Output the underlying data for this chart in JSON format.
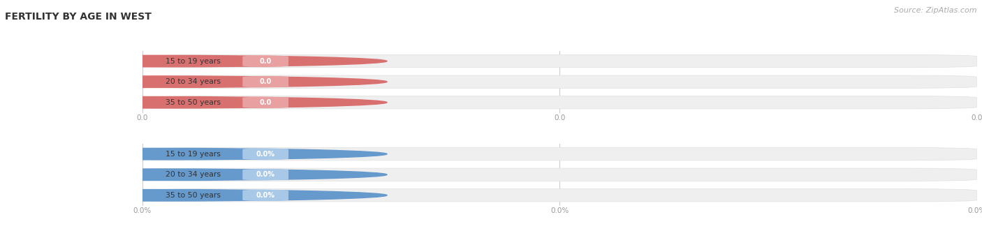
{
  "title": "FERTILITY BY AGE IN WEST",
  "source_text": "Source: ZipAtlas.com",
  "top_section": {
    "categories": [
      "15 to 19 years",
      "20 to 34 years",
      "35 to 50 years"
    ],
    "values": [
      0.0,
      0.0,
      0.0
    ],
    "bar_color": "#e8a0a0",
    "circle_color": "#d97070",
    "value_chip_color": "#e8a0a0",
    "bar_bg_color": "#efefef",
    "pill_bg_color": "#ffffff",
    "label_color": "#333333",
    "value_color": "#ffffff",
    "tick_color": "#999999",
    "tick_labels": [
      "0.0",
      "0.0",
      "0.0"
    ]
  },
  "bottom_section": {
    "categories": [
      "15 to 19 years",
      "20 to 34 years",
      "35 to 50 years"
    ],
    "values": [
      0.0,
      0.0,
      0.0
    ],
    "bar_color": "#a8c8e8",
    "circle_color": "#6699cc",
    "value_chip_color": "#a8c8e8",
    "bar_bg_color": "#efefef",
    "pill_bg_color": "#ffffff",
    "label_color": "#333333",
    "value_color": "#ffffff",
    "tick_color": "#999999",
    "tick_labels": [
      "0.0%",
      "0.0%",
      "0.0%"
    ]
  },
  "figsize": [
    14.06,
    3.31
  ],
  "dpi": 100,
  "bg_color": "#ffffff",
  "title_fontsize": 10,
  "title_color": "#333333",
  "source_fontsize": 8
}
